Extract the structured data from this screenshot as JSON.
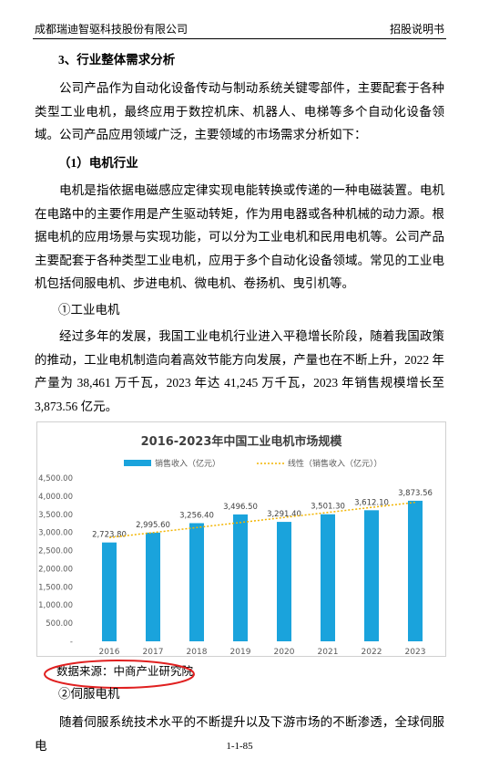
{
  "header": {
    "company": "成都瑞迪智驱科技股份有限公司",
    "doc": "招股说明书"
  },
  "section_heading": "3、行业整体需求分析",
  "paragraph_1": "公司产品作为自动化设备传动与制动系统关键零部件，主要配套于各种类型工业电机，最终应用于数控机床、机器人、电梯等多个自动化设备领域。公司产品应用领域广泛，主要领域的市场需求分析如下：",
  "subheading": "（1）电机行业",
  "paragraph_2": "电机是指依据电磁感应定律实现电能转换或传递的一种电磁装置。电机在电路中的主要作用是产生驱动转矩，作为用电器或各种机械的动力源。根据电机的应用场景与实现功能，可以分为工业电机和民用电机等。公司产品主要配套于各种类型工业电机，应用于多个自动化设备领域。常见的工业电机包括伺服电机、步进电机、微电机、卷扬机、曳引机等。",
  "item_1": "①工业电机",
  "paragraph_3": "经过多年的发展，我国工业电机行业进入平稳增长阶段，随着我国政策的推动，工业电机制造向着高效节能方向发展，产量也在不断上升，2022 年产量为 38,461 万千瓦，2023 年达 41,245 万千瓦，2023 年销售规模增长至 3,873.56 亿元。",
  "chart_data": {
    "type": "bar",
    "title": "2016-2023年中国工业电机市场规模",
    "categories": [
      "2016",
      "2017",
      "2018",
      "2019",
      "2020",
      "2021",
      "2022",
      "2023"
    ],
    "series": [
      {
        "name": "销售收入（亿元）",
        "color": "#1aa3dc",
        "values": [
          2723.8,
          2995.6,
          3256.4,
          3496.5,
          3291.4,
          3501.3,
          3612.1,
          3873.56
        ],
        "value_labels": [
          "2,723.80",
          "2,995.60",
          "3,256.40",
          "3,496.50",
          "3,291.40",
          "3,501.30",
          "3,612.10",
          "3,873.56"
        ]
      }
    ],
    "trendline": {
      "name": "线性（销售收入（亿元））",
      "color": "#f2b400"
    },
    "ylim": [
      0,
      4500
    ],
    "yticks": [
      {
        "value": 0,
        "label": "-"
      },
      {
        "value": 500,
        "label": "500.00"
      },
      {
        "value": 1000,
        "label": "1,000.00"
      },
      {
        "value": 1500,
        "label": "1,500.00"
      },
      {
        "value": 2000,
        "label": "2,000.00"
      },
      {
        "value": 2500,
        "label": "2,500.00"
      },
      {
        "value": 3000,
        "label": "3,000.00"
      },
      {
        "value": 3500,
        "label": "3,500.00"
      },
      {
        "value": 4000,
        "label": "4,000.00"
      },
      {
        "value": 4500,
        "label": "4,500.00"
      }
    ],
    "grid": false,
    "legend": "top"
  },
  "source": "数据来源：中商产业研究院",
  "item_2": "②伺服电机",
  "paragraph_4": "随着伺服系统技术水平的不断提升以及下游市场的不断渗透，全球伺服电",
  "footer": "1-1-85"
}
